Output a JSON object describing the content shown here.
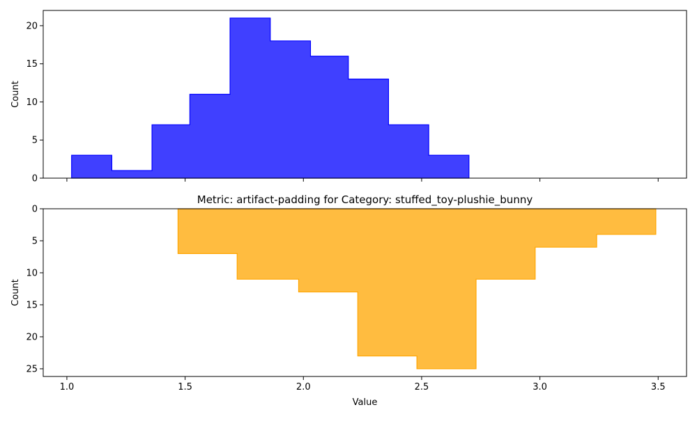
{
  "chart_data": [
    {
      "type": "histogram",
      "title": "",
      "xlabel": "",
      "ylabel": "Count",
      "ylim": [
        0,
        22
      ],
      "xlim": [
        0.9,
        3.62
      ],
      "yticks": [
        0,
        5,
        10,
        15,
        20
      ],
      "xticks": [
        1.0,
        1.5,
        2.0,
        2.5,
        3.0,
        3.5
      ],
      "show_xtick_labels": false,
      "inverted_y": false,
      "bins": [
        {
          "x0": 1.02,
          "x1": 1.19,
          "count": 3
        },
        {
          "x0": 1.19,
          "x1": 1.36,
          "count": 1
        },
        {
          "x0": 1.36,
          "x1": 1.52,
          "count": 7
        },
        {
          "x0": 1.52,
          "x1": 1.69,
          "count": 11
        },
        {
          "x0": 1.69,
          "x1": 1.86,
          "count": 21
        },
        {
          "x0": 1.86,
          "x1": 2.03,
          "count": 18
        },
        {
          "x0": 2.03,
          "x1": 2.19,
          "count": 16
        },
        {
          "x0": 2.19,
          "x1": 2.36,
          "count": 13
        },
        {
          "x0": 2.36,
          "x1": 2.53,
          "count": 7
        },
        {
          "x0": 2.53,
          "x1": 2.7,
          "count": 3
        }
      ],
      "color": "#0000ff",
      "fill_opacity": 0.75
    },
    {
      "type": "histogram",
      "title": "Metric: artifact-padding for Category: stuffed_toy-plushie_bunny",
      "xlabel": "Value",
      "ylabel": "Count",
      "ylim": [
        0,
        26.2
      ],
      "xlim": [
        0.9,
        3.62
      ],
      "yticks": [
        0,
        5,
        10,
        15,
        20,
        25
      ],
      "xticks": [
        1.0,
        1.5,
        2.0,
        2.5,
        3.0,
        3.5
      ],
      "show_xtick_labels": true,
      "inverted_y": true,
      "bins": [
        {
          "x0": 1.47,
          "x1": 1.72,
          "count": 7
        },
        {
          "x0": 1.72,
          "x1": 1.98,
          "count": 11
        },
        {
          "x0": 1.98,
          "x1": 2.23,
          "count": 13
        },
        {
          "x0": 2.23,
          "x1": 2.48,
          "count": 23
        },
        {
          "x0": 2.48,
          "x1": 2.73,
          "count": 25
        },
        {
          "x0": 2.73,
          "x1": 2.98,
          "count": 11
        },
        {
          "x0": 2.98,
          "x1": 3.24,
          "count": 6
        },
        {
          "x0": 3.24,
          "x1": 3.49,
          "count": 4
        }
      ],
      "color": "#ffa500",
      "fill_opacity": 0.75
    }
  ]
}
